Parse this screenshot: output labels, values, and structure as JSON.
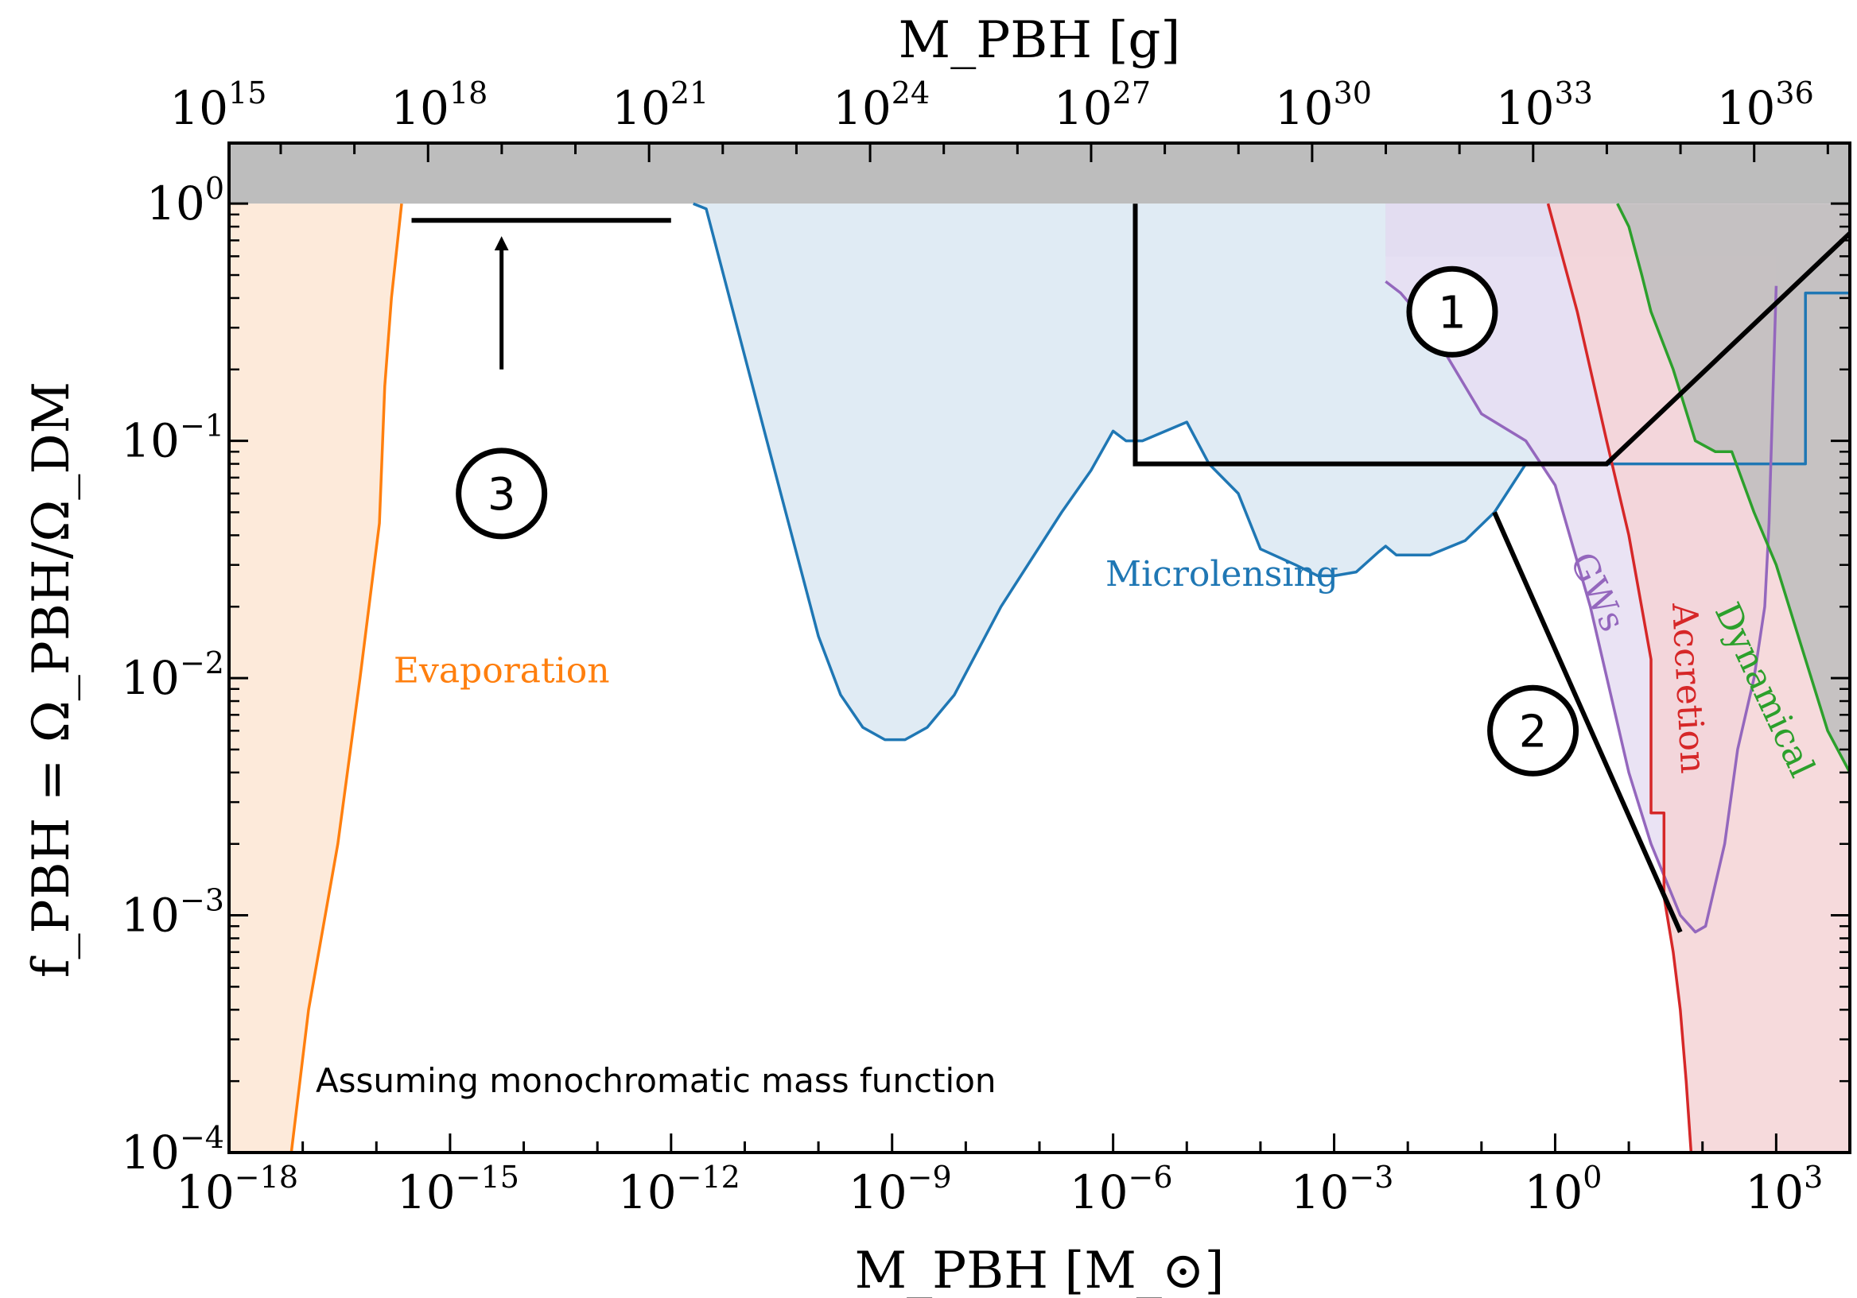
{
  "chart_data": {
    "type": "area",
    "x_scale": "log",
    "y_scale": "log",
    "xlim": [
      1e-18,
      10000.0
    ],
    "ylim": [
      0.0001,
      1.8
    ],
    "xlabel": "M_PBH [M_⊙]",
    "ylabel": "f_PBH = Ω_PBH/Ω_DM",
    "top_xlabel": "M_PBH [g]",
    "x_ticks": [
      {
        "base": "10",
        "exp": "−18",
        "value": 1e-18
      },
      {
        "base": "10",
        "exp": "−15",
        "value": 1e-15
      },
      {
        "base": "10",
        "exp": "−12",
        "value": 1e-12
      },
      {
        "base": "10",
        "exp": "−9",
        "value": 1e-09
      },
      {
        "base": "10",
        "exp": "−6",
        "value": 1e-06
      },
      {
        "base": "10",
        "exp": "−3",
        "value": 0.001
      },
      {
        "base": "10",
        "exp": "0",
        "value": 1
      },
      {
        "base": "10",
        "exp": "3",
        "value": 1000.0
      }
    ],
    "y_ticks": [
      {
        "base": "10",
        "exp": "−4",
        "value": 0.0001
      },
      {
        "base": "10",
        "exp": "−3",
        "value": 0.001
      },
      {
        "base": "10",
        "exp": "−2",
        "value": 0.01
      },
      {
        "base": "10",
        "exp": "−1",
        "value": 0.1
      },
      {
        "base": "10",
        "exp": "0",
        "value": 1
      }
    ],
    "top_ticks": [
      {
        "base": "10",
        "exp": "15",
        "grams": 1000000000000000.0
      },
      {
        "base": "10",
        "exp": "18",
        "grams": 1e+18
      },
      {
        "base": "10",
        "exp": "21",
        "grams": 1e+21
      },
      {
        "base": "10",
        "exp": "24",
        "grams": 1e+24
      },
      {
        "base": "10",
        "exp": "27",
        "grams": 1e+27
      },
      {
        "base": "10",
        "exp": "30",
        "grams": 1e+30
      },
      {
        "base": "10",
        "exp": "33",
        "grams": 1e+33
      },
      {
        "base": "10",
        "exp": "36",
        "grams": 1e+36
      }
    ],
    "solar_mass_grams": 1.989e+33,
    "unphysical_band": {
      "y_from": 1,
      "color": "#bdbdbd"
    },
    "series": [
      {
        "name": "Evaporation",
        "color": "#ff7f0e",
        "fill": "#fde6d3",
        "boundary": [
          [
            7e-18,
            0.0001
          ],
          [
            1.2e-17,
            0.0004
          ],
          [
            3e-17,
            0.002
          ],
          [
            6e-17,
            0.01
          ],
          [
            1.1e-16,
            0.045
          ],
          [
            1.3e-16,
            0.17
          ],
          [
            1.6e-16,
            0.4
          ],
          [
            2.2e-16,
            1
          ]
        ]
      },
      {
        "name": "Microlensing",
        "color": "#1f77b4",
        "fill": "#dae7f2",
        "boundary": [
          [
            2e-12,
            1
          ],
          [
            3e-12,
            0.95
          ],
          [
            2e-11,
            0.1
          ],
          [
            1e-10,
            0.015
          ],
          [
            2e-10,
            0.0085
          ],
          [
            4e-10,
            0.0062
          ],
          [
            8e-10,
            0.0055
          ],
          [
            1.5e-09,
            0.0055
          ],
          [
            3e-09,
            0.0062
          ],
          [
            7e-09,
            0.0085
          ],
          [
            3e-08,
            0.02
          ],
          [
            2e-07,
            0.05
          ],
          [
            5e-07,
            0.075
          ],
          [
            1e-06,
            0.11
          ],
          [
            1.5e-06,
            0.1
          ],
          [
            2.5e-06,
            0.1
          ],
          [
            1e-05,
            0.12
          ],
          [
            2e-05,
            0.08
          ],
          [
            5e-05,
            0.06
          ],
          [
            0.0001,
            0.035
          ],
          [
            0.0003,
            0.03
          ],
          [
            0.0006,
            0.027
          ],
          [
            0.001,
            0.027
          ],
          [
            0.002,
            0.028
          ],
          [
            0.004,
            0.034
          ],
          [
            0.005,
            0.036
          ],
          [
            0.007,
            0.033
          ],
          [
            0.02,
            0.033
          ],
          [
            0.06,
            0.038
          ],
          [
            0.15,
            0.05
          ],
          [
            0.4,
            0.08
          ],
          [
            2500.0,
            0.08
          ],
          [
            2500.0,
            0.42
          ],
          [
            10000.0,
            0.42
          ]
        ]
      },
      {
        "name": "GWs",
        "color": "#9467bd",
        "fill": "#e6def2",
        "boundary": [
          [
            0.005,
            0.47
          ],
          [
            0.008,
            0.42
          ],
          [
            0.02,
            0.3
          ],
          [
            0.1,
            0.13
          ],
          [
            0.4,
            0.1
          ],
          [
            1,
            0.065
          ],
          [
            3,
            0.02
          ],
          [
            10,
            0.004
          ],
          [
            20,
            0.002
          ],
          [
            50,
            0.001
          ],
          [
            80,
            0.00085
          ],
          [
            110,
            0.0009
          ],
          [
            200,
            0.002
          ],
          [
            300,
            0.005
          ],
          [
            500,
            0.01
          ],
          [
            700,
            0.02
          ],
          [
            800,
            0.045
          ],
          [
            900,
            0.15
          ],
          [
            1000,
            0.45
          ]
        ]
      },
      {
        "name": "Accretion",
        "color": "#d62728",
        "fill": "#f5d4d6",
        "boundary": [
          [
            0.8,
            1
          ],
          [
            2,
            0.35
          ],
          [
            5,
            0.1
          ],
          [
            10,
            0.04
          ],
          [
            20,
            0.012
          ],
          [
            20,
            0.0027
          ],
          [
            30,
            0.0027
          ],
          [
            30,
            0.0012
          ],
          [
            40,
            0.0007
          ],
          [
            50,
            0.0004
          ],
          [
            60,
            0.0002
          ],
          [
            70,
            0.0001
          ]
        ]
      },
      {
        "name": "Dynamical",
        "color": "#2ca02c",
        "fill": "#bdbdbd",
        "boundary": [
          [
            7,
            1
          ],
          [
            10,
            0.8
          ],
          [
            15,
            0.5
          ],
          [
            20,
            0.35
          ],
          [
            40,
            0.2
          ],
          [
            80,
            0.1
          ],
          [
            150,
            0.09
          ],
          [
            250,
            0.09
          ],
          [
            500,
            0.05
          ],
          [
            1000,
            0.03
          ],
          [
            2000,
            0.015
          ],
          [
            5000,
            0.006
          ],
          [
            10000.0,
            0.004
          ]
        ]
      }
    ],
    "unlabeled_region": {
      "color": "#c9c9e6",
      "x_from": 0.005,
      "x_to": 1000.0
    },
    "callouts": [
      {
        "label": "1",
        "path": [
          [
            2e-06,
            1
          ],
          [
            2e-06,
            0.08
          ],
          [
            5,
            0.08
          ],
          [
            10000.0,
            0.75
          ]
        ],
        "circle": [
          0.04,
          0.35
        ]
      },
      {
        "label": "2",
        "path": [
          [
            0.15,
            0.05
          ],
          [
            50,
            0.00085
          ]
        ],
        "circle": [
          0.5,
          0.006
        ]
      },
      {
        "label": "3",
        "path": [
          [
            3e-16,
            0.85
          ],
          [
            1e-12,
            0.85
          ]
        ],
        "arrow_x": 5e-15,
        "arrow_from": 0.2,
        "arrow_to": 0.68,
        "circle": [
          5e-15,
          0.06
        ]
      }
    ],
    "annotation": "Assuming monochromatic mass function"
  }
}
